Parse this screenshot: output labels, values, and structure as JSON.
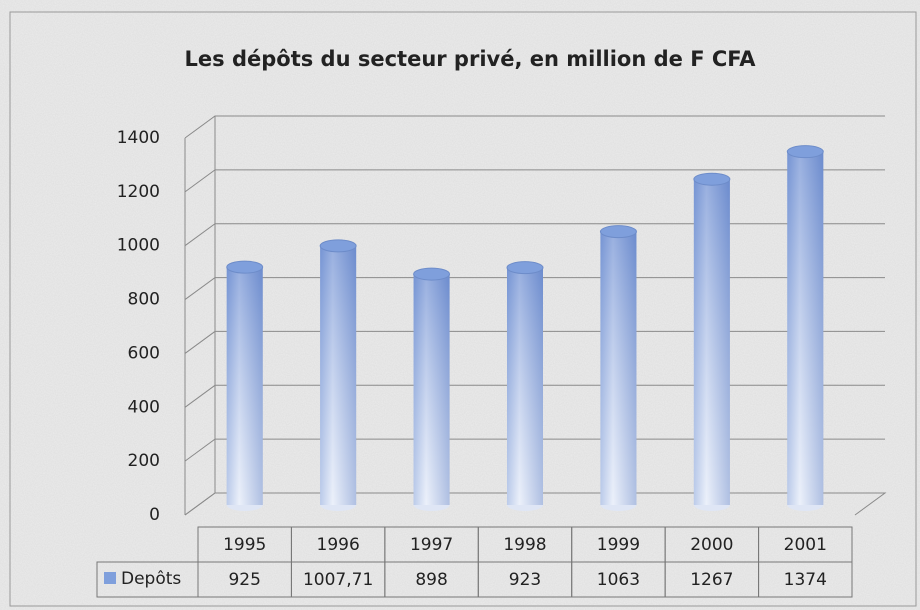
{
  "chart_data": {
    "type": "bar",
    "title": "Les dépôts du secteur privé, en million de F CFA",
    "categories": [
      "1995",
      "1996",
      "1997",
      "1998",
      "1999",
      "2000",
      "2001"
    ],
    "series": [
      {
        "name": "Depôts",
        "color": "#7f9fdc",
        "values": [
          925,
          1007.71,
          898,
          923,
          1063,
          1267,
          1374
        ],
        "value_labels": [
          "925",
          "1007,71",
          "898",
          "923",
          "1063",
          "1267",
          "1374"
        ]
      }
    ],
    "ylim": [
      0,
      1400
    ],
    "yticks": [
      0,
      200,
      400,
      600,
      800,
      1000,
      1200,
      1400
    ],
    "grid": true
  }
}
